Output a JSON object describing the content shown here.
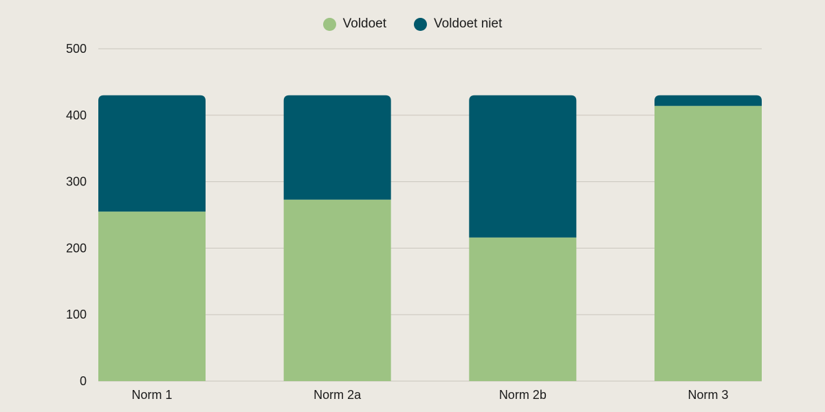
{
  "chart_data": {
    "type": "bar",
    "stacked": true,
    "categories": [
      "Norm 1",
      "Norm 2a",
      "Norm 2b",
      "Norm 3"
    ],
    "series": [
      {
        "name": "Voldoet",
        "values": [
          255,
          273,
          216,
          414
        ],
        "color": "#9dc383"
      },
      {
        "name": "Voldoet niet",
        "values": [
          175,
          157,
          214,
          16
        ],
        "color": "#00586b"
      }
    ],
    "yticks": [
      0,
      100,
      200,
      300,
      400,
      500
    ],
    "ylim": [
      0,
      500
    ],
    "grid": true,
    "legend_position": "top-center",
    "title": "",
    "xlabel": "",
    "ylabel": ""
  }
}
